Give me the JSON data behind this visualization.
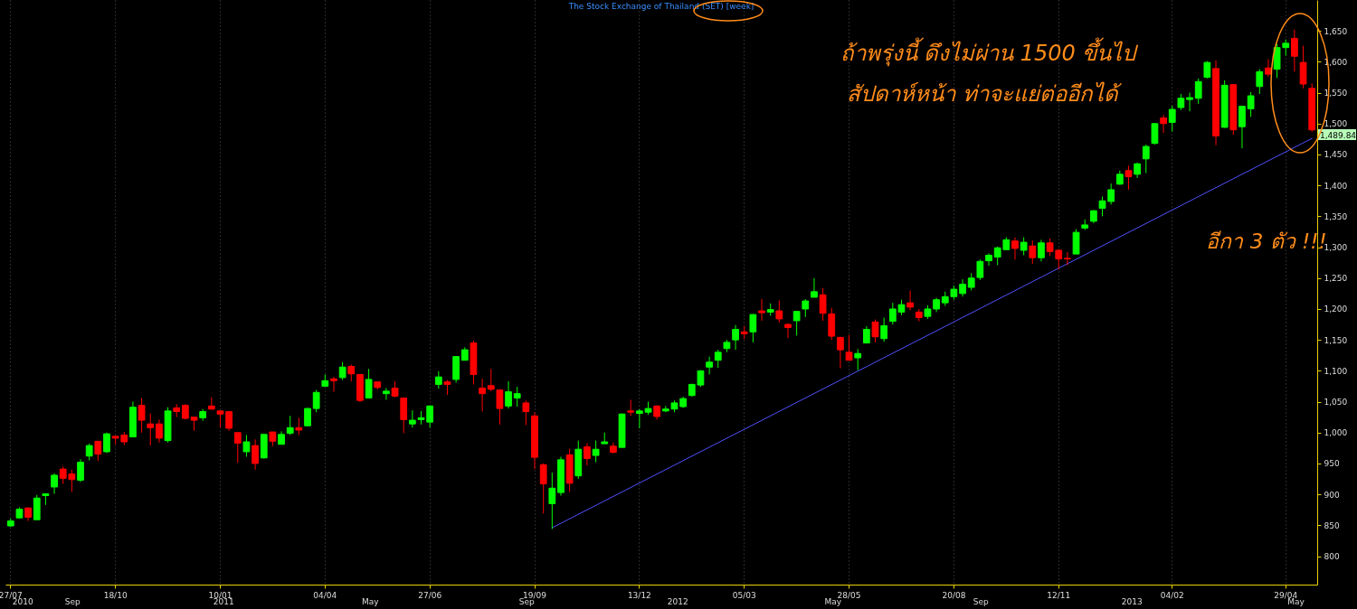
{
  "chart_data": {
    "type": "candlestick",
    "title": "The Stock Exchange of Thailand (SET) [week]",
    "annotations": [
      "ถ้าพรุ่งนี้ ดึงไม่ผ่าน 1500 ขึ้นไป",
      "สัปดาห์หน้า ท่าจะแย่ต่ออีกได้",
      "อีกา 3 ตัว !!!",
      "1,489.84",
      "2010",
      "Sep",
      "2011",
      "May",
      "Sep",
      "2012",
      "May",
      "Sep",
      "2013",
      "May"
    ],
    "categories": [
      "27/07",
      null,
      null,
      null,
      null,
      null,
      null,
      null,
      null,
      null,
      null,
      null,
      "18/10",
      null,
      null,
      null,
      null,
      null,
      null,
      null,
      null,
      null,
      null,
      null,
      "10/01",
      null,
      null,
      null,
      null,
      null,
      null,
      null,
      null,
      null,
      null,
      null,
      "04/04",
      null,
      null,
      null,
      null,
      null,
      null,
      null,
      null,
      null,
      null,
      null,
      "27/06",
      null,
      null,
      null,
      null,
      null,
      null,
      null,
      null,
      null,
      null,
      null,
      "19/09",
      null,
      null,
      null,
      null,
      null,
      null,
      null,
      null,
      null,
      null,
      null,
      "13/12",
      null,
      null,
      null,
      null,
      null,
      null,
      null,
      null,
      null,
      null,
      null,
      "05/03",
      null,
      null,
      null,
      null,
      null,
      null,
      null,
      null,
      null,
      null,
      null,
      "28/05",
      null,
      null,
      null,
      null,
      null,
      null,
      null,
      null,
      null,
      null,
      null,
      "20/08",
      null,
      null,
      null,
      null,
      null,
      null,
      null,
      null,
      null,
      null,
      null,
      "12/11",
      null,
      null,
      null,
      null,
      null,
      null,
      null,
      null,
      null,
      null,
      null,
      null,
      "04/02",
      null,
      null,
      null,
      null,
      null,
      null,
      null,
      null,
      null,
      null,
      null,
      null,
      "29/04",
      null,
      null,
      null
    ],
    "ohlc": [
      [
        849,
        861,
        847,
        857
      ],
      [
        862,
        879,
        861,
        876
      ],
      [
        878,
        879,
        857,
        863
      ],
      [
        859,
        899,
        859,
        894
      ],
      [
        898,
        901,
        883,
        901
      ],
      [
        912,
        934,
        901,
        931
      ],
      [
        941,
        945,
        917,
        926
      ],
      [
        933,
        940,
        904,
        924
      ],
      [
        923,
        957,
        920,
        952
      ],
      [
        962,
        982,
        955,
        979
      ],
      [
        986,
        986,
        954,
        965
      ],
      [
        969,
        1000,
        967,
        998
      ],
      [
        994,
        994,
        981,
        991
      ],
      [
        996,
        1001,
        980,
        985
      ],
      [
        993,
        1050,
        993,
        1041
      ],
      [
        1044,
        1056,
        1000,
        1020
      ],
      [
        1014,
        1031,
        979,
        1008
      ],
      [
        1014,
        1021,
        984,
        991
      ],
      [
        987,
        1041,
        984,
        1035
      ],
      [
        1040,
        1046,
        1025,
        1034
      ],
      [
        1044,
        1046,
        1021,
        1023
      ],
      [
        1025,
        1025,
        1003,
        1020
      ],
      [
        1024,
        1038,
        1019,
        1034
      ],
      [
        1043,
        1057,
        1037,
        1038
      ],
      [
        1035,
        1035,
        1008,
        1030
      ],
      [
        1034,
        1035,
        1003,
        1007
      ],
      [
        1000,
        1000,
        951,
        983
      ],
      [
        969,
        996,
        961,
        985
      ],
      [
        979,
        989,
        940,
        950
      ],
      [
        959,
        998,
        958,
        997
      ],
      [
        1001,
        1001,
        978,
        986
      ],
      [
        981,
        1002,
        981,
        997
      ],
      [
        999,
        1027,
        996,
        1008
      ],
      [
        1008,
        1024,
        996,
        1004
      ],
      [
        1011,
        1040,
        1011,
        1039
      ],
      [
        1039,
        1069,
        1033,
        1065
      ],
      [
        1075,
        1094,
        1075,
        1084
      ],
      [
        1087,
        1090,
        1066,
        1084
      ],
      [
        1089,
        1114,
        1085,
        1106
      ],
      [
        1107,
        1110,
        1083,
        1095
      ],
      [
        1094,
        1095,
        1049,
        1052
      ],
      [
        1056,
        1103,
        1056,
        1086
      ],
      [
        1082,
        1082,
        1070,
        1073
      ],
      [
        1063,
        1072,
        1053,
        1067
      ],
      [
        1072,
        1083,
        1057,
        1059
      ],
      [
        1056,
        1056,
        999,
        1021
      ],
      [
        1014,
        1036,
        1008,
        1020
      ],
      [
        1021,
        1035,
        1013,
        1024
      ],
      [
        1017,
        1044,
        1008,
        1043
      ],
      [
        1078,
        1099,
        1071,
        1090
      ],
      [
        1082,
        1085,
        1061,
        1078
      ],
      [
        1086,
        1123,
        1081,
        1123
      ],
      [
        1117,
        1138,
        1117,
        1134
      ],
      [
        1145,
        1149,
        1078,
        1094
      ],
      [
        1072,
        1087,
        1034,
        1063
      ],
      [
        1076,
        1103,
        1067,
        1070
      ],
      [
        1069,
        1069,
        1013,
        1039
      ],
      [
        1043,
        1083,
        1039,
        1066
      ],
      [
        1056,
        1074,
        1042,
        1063
      ],
      [
        1048,
        1052,
        1012,
        1034
      ],
      [
        1027,
        1033,
        941,
        960
      ],
      [
        948,
        950,
        869,
        917
      ],
      [
        885,
        935,
        844,
        910
      ],
      [
        903,
        961,
        898,
        956
      ],
      [
        964,
        974,
        904,
        918
      ],
      [
        930,
        987,
        925,
        973
      ],
      [
        977,
        983,
        947,
        958
      ],
      [
        963,
        987,
        952,
        973
      ],
      [
        982,
        1000,
        982,
        985
      ],
      [
        978,
        984,
        966,
        968
      ],
      [
        976,
        1031,
        976,
        1030
      ],
      [
        1035,
        1053,
        1027,
        1033
      ],
      [
        1031,
        1038,
        1007,
        1035
      ],
      [
        1033,
        1050,
        1029,
        1039
      ],
      [
        1043,
        1044,
        1021,
        1026
      ],
      [
        1035,
        1043,
        1033,
        1038
      ],
      [
        1038,
        1052,
        1033,
        1048
      ],
      [
        1042,
        1058,
        1040,
        1055
      ],
      [
        1060,
        1079,
        1058,
        1078
      ],
      [
        1077,
        1101,
        1074,
        1100
      ],
      [
        1106,
        1123,
        1094,
        1114
      ],
      [
        1117,
        1134,
        1105,
        1130
      ],
      [
        1136,
        1150,
        1130,
        1146
      ],
      [
        1150,
        1174,
        1134,
        1167
      ],
      [
        1163,
        1172,
        1151,
        1160
      ],
      [
        1163,
        1192,
        1146,
        1191
      ],
      [
        1197,
        1216,
        1181,
        1194
      ],
      [
        1195,
        1209,
        1189,
        1199
      ],
      [
        1197,
        1214,
        1178,
        1184
      ],
      [
        1175,
        1177,
        1153,
        1170
      ],
      [
        1181,
        1197,
        1157,
        1196
      ],
      [
        1200,
        1216,
        1187,
        1213
      ],
      [
        1219,
        1250,
        1219,
        1228
      ],
      [
        1223,
        1234,
        1181,
        1193
      ],
      [
        1192,
        1202,
        1150,
        1156
      ],
      [
        1154,
        1155,
        1104,
        1134
      ],
      [
        1130,
        1158,
        1117,
        1117
      ],
      [
        1121,
        1135,
        1101,
        1128
      ],
      [
        1145,
        1172,
        1144,
        1167
      ],
      [
        1179,
        1183,
        1146,
        1155
      ],
      [
        1152,
        1186,
        1147,
        1173
      ],
      [
        1180,
        1210,
        1175,
        1200
      ],
      [
        1195,
        1215,
        1190,
        1207
      ],
      [
        1210,
        1230,
        1198,
        1203
      ],
      [
        1195,
        1200,
        1180,
        1186
      ],
      [
        1188,
        1206,
        1184,
        1200
      ],
      [
        1200,
        1218,
        1195,
        1215
      ],
      [
        1210,
        1228,
        1205,
        1220
      ],
      [
        1220,
        1238,
        1215,
        1232
      ],
      [
        1225,
        1248,
        1220,
        1240
      ],
      [
        1235,
        1258,
        1230,
        1250
      ],
      [
        1251,
        1280,
        1247,
        1277
      ],
      [
        1278,
        1290,
        1270,
        1287
      ],
      [
        1284,
        1301,
        1271,
        1299
      ],
      [
        1296,
        1316,
        1296,
        1312
      ],
      [
        1310,
        1316,
        1280,
        1298
      ],
      [
        1295,
        1316,
        1287,
        1308
      ],
      [
        1302,
        1311,
        1273,
        1283
      ],
      [
        1283,
        1312,
        1277,
        1307
      ],
      [
        1307,
        1314,
        1286,
        1293
      ],
      [
        1295,
        1297,
        1264,
        1281
      ],
      [
        1282,
        1292,
        1271,
        1281
      ],
      [
        1289,
        1329,
        1289,
        1324
      ],
      [
        1331,
        1345,
        1328,
        1336
      ],
      [
        1342,
        1360,
        1339,
        1359
      ],
      [
        1363,
        1382,
        1350,
        1375
      ],
      [
        1374,
        1403,
        1369,
        1393
      ],
      [
        1402,
        1424,
        1401,
        1418
      ],
      [
        1424,
        1432,
        1393,
        1414
      ],
      [
        1418,
        1437,
        1412,
        1435
      ],
      [
        1443,
        1466,
        1420,
        1463
      ],
      [
        1468,
        1501,
        1466,
        1500
      ],
      [
        1509,
        1514,
        1485,
        1500
      ],
      [
        1502,
        1529,
        1487,
        1523
      ],
      [
        1526,
        1548,
        1522,
        1541
      ],
      [
        1539,
        1550,
        1520,
        1542
      ],
      [
        1541,
        1573,
        1532,
        1568
      ],
      [
        1575,
        1601,
        1573,
        1599
      ],
      [
        1589,
        1602,
        1465,
        1480
      ],
      [
        1494,
        1570,
        1493,
        1562
      ],
      [
        1563,
        1564,
        1482,
        1490
      ],
      [
        1495,
        1528,
        1460,
        1528
      ],
      [
        1524,
        1551,
        1511,
        1545
      ],
      [
        1560,
        1588,
        1548,
        1584
      ],
      [
        1590,
        1604,
        1576,
        1580
      ],
      [
        1588,
        1629,
        1574,
        1623
      ],
      [
        1623,
        1636,
        1610,
        1630
      ],
      [
        1638,
        1652,
        1584,
        1609
      ],
      [
        1599,
        1626,
        1557,
        1564
      ],
      [
        1557,
        1565,
        1487,
        1489.84
      ]
    ],
    "colors": [
      "#00ff00",
      "#00ff00",
      "#ff0000",
      "#00ff00",
      "#00ff00",
      "#00ff00",
      "#ff0000",
      "#ff0000",
      "#00ff00",
      "#00ff00",
      "#ff0000",
      "#00ff00",
      "#ff0000",
      "#ff0000",
      "#00ff00",
      "#ff0000",
      "#ff0000",
      "#ff0000",
      "#00ff00",
      "#ff0000",
      "#ff0000",
      "#ff0000",
      "#00ff00",
      "#ff0000",
      "#ff0000",
      "#ff0000",
      "#ff0000",
      "#00ff00",
      "#ff0000",
      "#00ff00",
      "#ff0000",
      "#00ff00",
      "#00ff00",
      "#ff0000",
      "#00ff00",
      "#00ff00",
      "#00ff00",
      "#ff0000",
      "#00ff00",
      "#ff0000",
      "#ff0000",
      "#00ff00",
      "#ff0000",
      "#00ff00",
      "#ff0000",
      "#ff0000",
      "#00ff00",
      "#00ff00",
      "#00ff00",
      "#00ff00",
      "#ff0000",
      "#00ff00",
      "#00ff00",
      "#ff0000",
      "#ff0000",
      "#ff0000",
      "#ff0000",
      "#00ff00",
      "#00ff00",
      "#ff0000",
      "#ff0000",
      "#ff0000",
      "#00ff00",
      "#00ff00",
      "#ff0000",
      "#00ff00",
      "#ff0000",
      "#00ff00",
      "#00ff00",
      "#ff0000",
      "#00ff00",
      "#ff0000",
      "#00ff00",
      "#00ff00",
      "#ff0000",
      "#00ff00",
      "#00ff00",
      "#00ff00",
      "#00ff00",
      "#00ff00",
      "#00ff00",
      "#00ff00",
      "#00ff00",
      "#00ff00",
      "#ff0000",
      "#00ff00",
      "#ff0000",
      "#00ff00",
      "#ff0000",
      "#ff0000",
      "#00ff00",
      "#00ff00",
      "#00ff00",
      "#ff0000",
      "#ff0000",
      "#ff0000",
      "#ff0000",
      "#00ff00",
      "#00ff00",
      "#ff0000",
      "#00ff00",
      "#00ff00",
      "#00ff00",
      "#ff0000",
      "#ff0000",
      "#00ff00",
      "#00ff00",
      "#00ff00",
      "#00ff00",
      "#00ff00",
      "#00ff00",
      "#00ff00",
      "#00ff00",
      "#00ff00",
      "#00ff00",
      "#ff0000",
      "#00ff00",
      "#ff0000",
      "#00ff00",
      "#ff0000",
      "#ff0000",
      "#ff0000",
      "#00ff00",
      "#00ff00",
      "#00ff00",
      "#00ff00",
      "#00ff00",
      "#00ff00",
      "#ff0000",
      "#00ff00",
      "#00ff00",
      "#00ff00",
      "#ff0000",
      "#00ff00",
      "#00ff00",
      "#00ff00",
      "#00ff00",
      "#00ff00",
      "#ff0000",
      "#00ff00",
      "#ff0000",
      "#00ff00",
      "#00ff00",
      "#00ff00",
      "#ff0000",
      "#00ff00",
      "#00ff00",
      "#ff0000",
      "#ff0000",
      "#ff0000"
    ],
    "series": [
      {
        "type": "line",
        "color": "#5050ff",
        "values": [
          null,
          null,
          null,
          null,
          null,
          null,
          null,
          null,
          null,
          null,
          null,
          null,
          null,
          null,
          null,
          null,
          null,
          null,
          null,
          null,
          null,
          null,
          null,
          null,
          null,
          null,
          null,
          null,
          null,
          null,
          null,
          null,
          null,
          null,
          null,
          null,
          null,
          null,
          null,
          null,
          null,
          null,
          null,
          null,
          null,
          null,
          null,
          null,
          null,
          null,
          null,
          null,
          null,
          null,
          null,
          null,
          null,
          null,
          null,
          null,
          null,
          null,
          846,
          null,
          null,
          null,
          null,
          null,
          null,
          null,
          null,
          null,
          null,
          null,
          null,
          null,
          null,
          null,
          null,
          null,
          null,
          null,
          null,
          null,
          null,
          null,
          null,
          null,
          null,
          null,
          null,
          null,
          null,
          null,
          null,
          null,
          null,
          null,
          null,
          null,
          null,
          null,
          null,
          null,
          null,
          null,
          null,
          null,
          null,
          null,
          null,
          null,
          null,
          null,
          null,
          null,
          null,
          null,
          null,
          null,
          null,
          null,
          null,
          null,
          null,
          null,
          null,
          null,
          null,
          null,
          null,
          null,
          null,
          null,
          null,
          null,
          null,
          null,
          null,
          null,
          null,
          null,
          null,
          null,
          null,
          null,
          null,
          null,
          null,
          1476
        ]
      }
    ],
    "ylim": [
      754,
      1700
    ],
    "yticks": [
      800,
      850,
      900,
      950,
      {
        "value": 1000,
        "label": "1,000"
      },
      {
        "value": 1050,
        "label": "1,050"
      },
      {
        "value": 1100,
        "label": "1,100"
      },
      {
        "value": 1150,
        "label": "1,150"
      },
      {
        "value": 1200,
        "label": "1,200"
      },
      {
        "value": 1250,
        "label": "1,250"
      },
      {
        "value": 1300,
        "label": "1,300"
      },
      {
        "value": 1350,
        "label": "1,350"
      },
      {
        "value": 1400,
        "label": "1,400"
      },
      {
        "value": 1450,
        "label": "1,450"
      },
      {
        "value": 1500,
        "label": "1,500"
      },
      {
        "value": 1550,
        "label": "1,550"
      },
      {
        "value": 1600,
        "label": "1,600"
      },
      {
        "value": 1650,
        "label": "1,650"
      }
    ],
    "grid": "x"
  }
}
